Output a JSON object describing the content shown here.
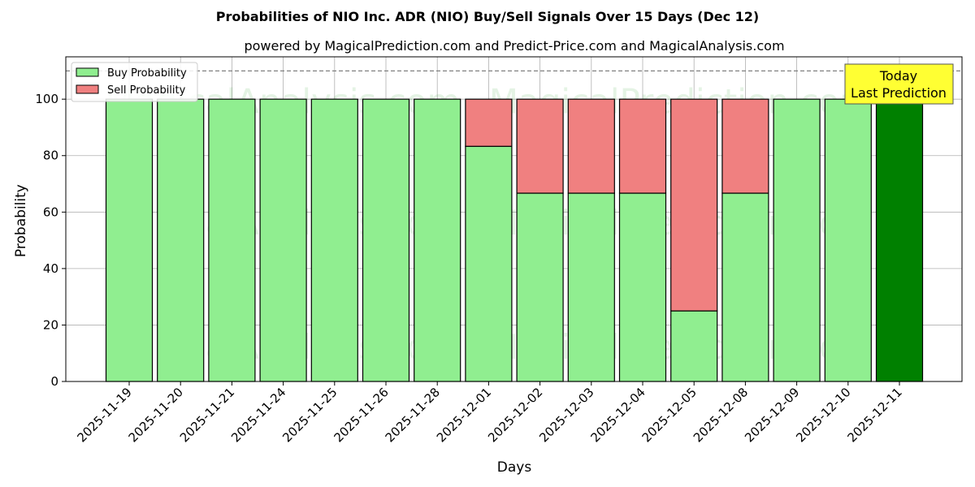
{
  "chart_data": {
    "type": "bar",
    "stacked": true,
    "title": "Probabilities of NIO Inc. ADR (NIO) Buy/Sell Signals Over 15 Days (Dec 12)",
    "subtitle": "powered by MagicalPrediction.com and Predict-Price.com and MagicalAnalysis.com",
    "xlabel": "Days",
    "ylabel": "Probability",
    "ylim": [
      0,
      115
    ],
    "yticks": [
      0,
      20,
      40,
      60,
      80,
      100
    ],
    "grid": true,
    "legend_placement": "top-left",
    "categories": [
      "2025-11-19",
      "2025-11-20",
      "2025-11-21",
      "2025-11-24",
      "2025-11-25",
      "2025-11-26",
      "2025-11-28",
      "2025-12-01",
      "2025-12-02",
      "2025-12-03",
      "2025-12-04",
      "2025-12-05",
      "2025-12-08",
      "2025-12-09",
      "2025-12-10",
      "2025-12-11"
    ],
    "series": [
      {
        "name": "Buy Probability",
        "color": "#90ee90",
        "values": [
          100,
          100,
          100,
          100,
          100,
          100,
          100,
          83.3,
          66.7,
          66.7,
          66.7,
          25,
          66.7,
          100,
          100,
          100
        ]
      },
      {
        "name": "Sell Probability",
        "color": "#f08080",
        "values": [
          0,
          0,
          0,
          0,
          0,
          0,
          0,
          16.7,
          33.3,
          33.3,
          33.3,
          75,
          33.3,
          0,
          0,
          0
        ]
      }
    ],
    "highlight": {
      "index": 15,
      "color": "#008000"
    },
    "reference_line": {
      "y": 110,
      "style": "dashed"
    },
    "annotation": {
      "lines": [
        "Today",
        "Last Prediction"
      ],
      "background": "#ffff33"
    },
    "watermarks": [
      "MagicalAnalysis.com",
      "MagicalPrediction.com"
    ]
  }
}
